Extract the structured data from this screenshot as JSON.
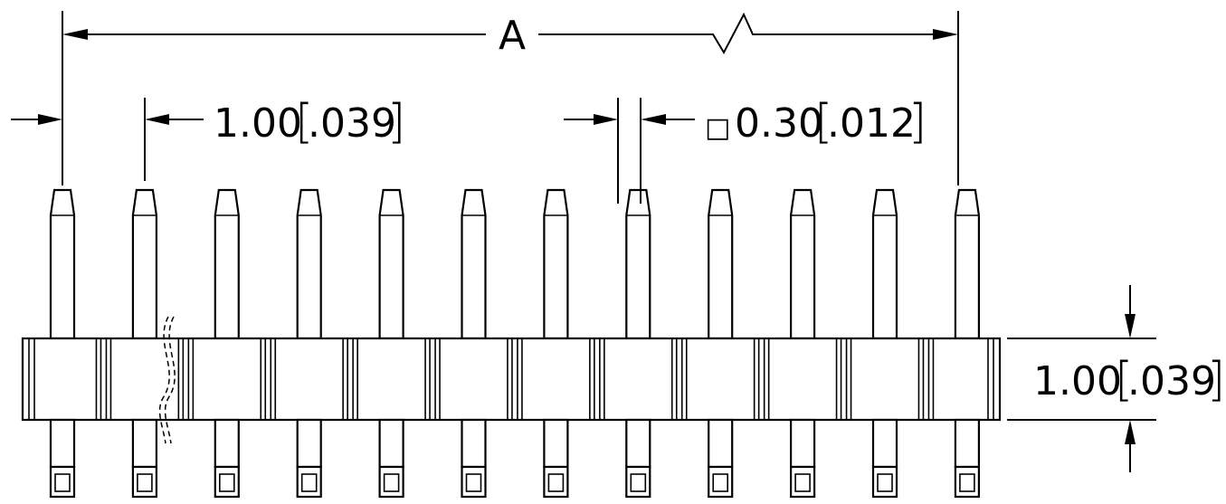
{
  "drawing": {
    "pin_count": 12,
    "dimensions": {
      "overall": {
        "label": "A"
      },
      "pitch": {
        "value": "1.00",
        "imperial": ".039"
      },
      "pin_size": {
        "symbol": "□",
        "value": "0.30",
        "imperial": ".012"
      },
      "body_height": {
        "value": "1.00",
        "imperial": ".039"
      }
    },
    "colors": {
      "line": "#000000",
      "background": "#ffffff"
    }
  }
}
